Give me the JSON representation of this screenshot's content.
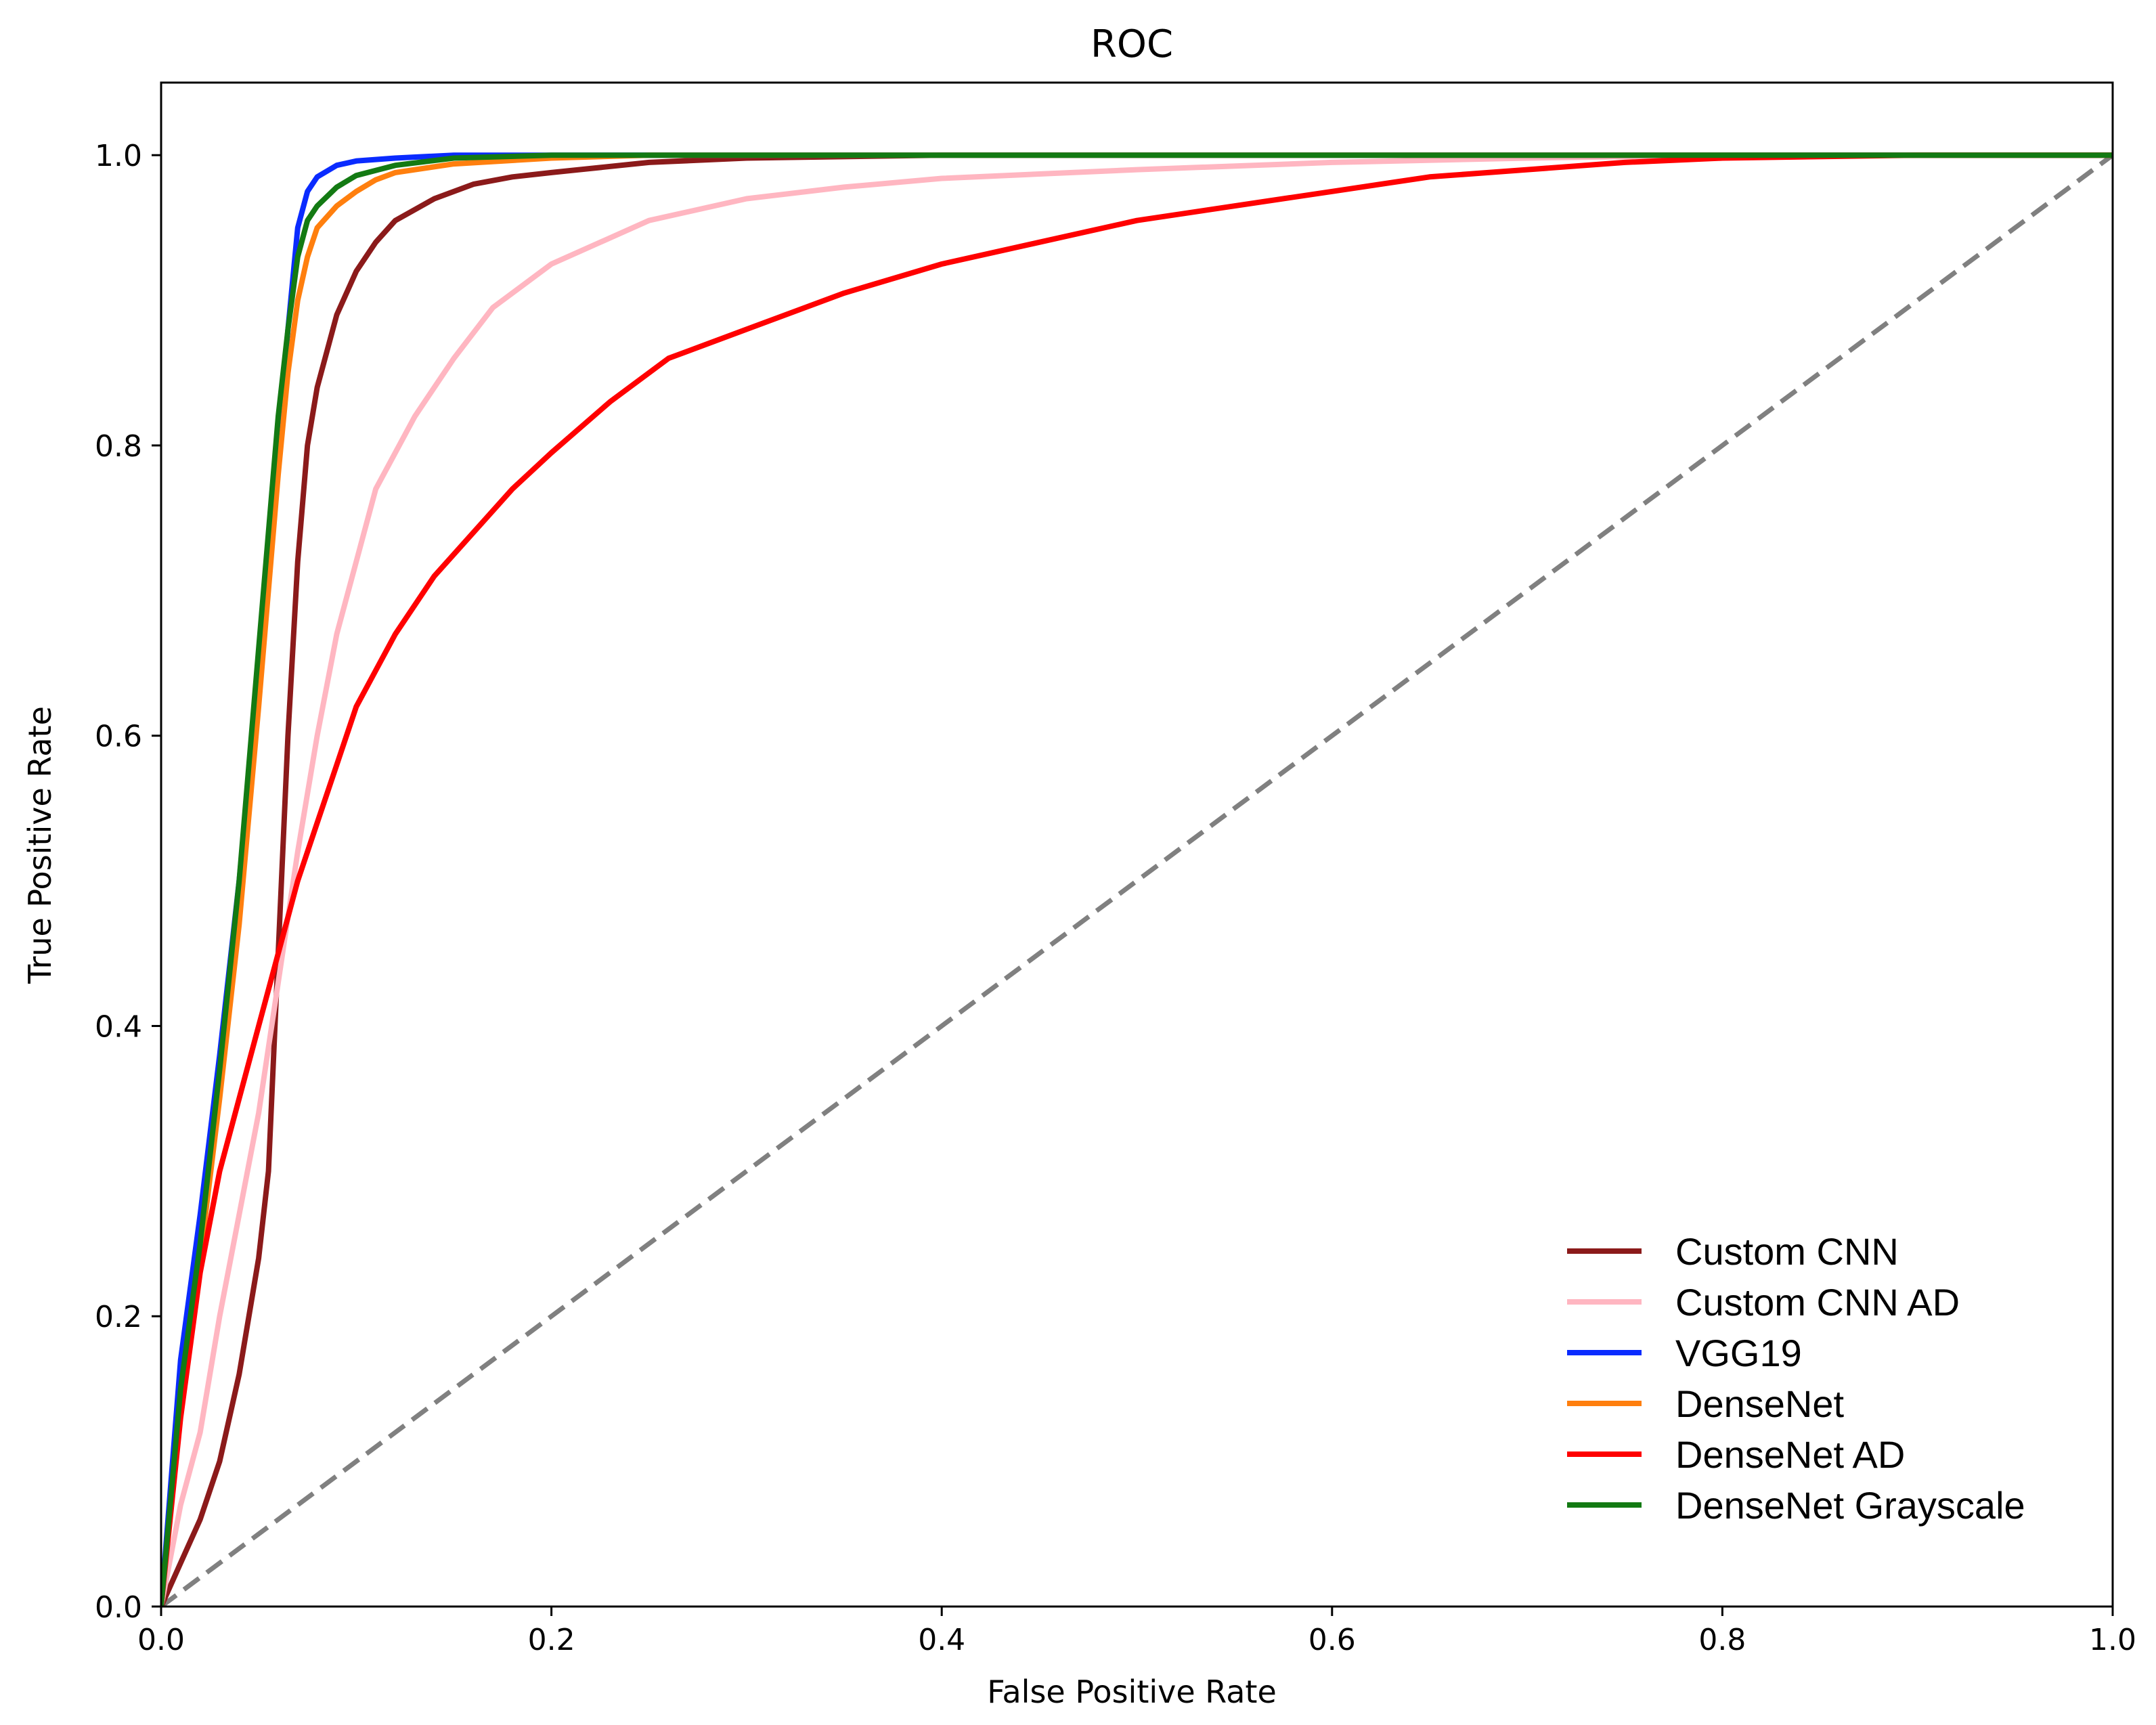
{
  "chart_data": {
    "type": "line",
    "title": "ROC",
    "xlabel": "False Positive Rate",
    "ylabel": "True Positive Rate",
    "xlim": [
      0.0,
      1.0
    ],
    "ylim": [
      0.0,
      1.05
    ],
    "xticks": [
      "0.0",
      "0.2",
      "0.4",
      "0.6",
      "0.8",
      "1.0"
    ],
    "yticks": [
      "0.0",
      "0.2",
      "0.4",
      "0.6",
      "0.8",
      "1.0"
    ],
    "grid": false,
    "legend_position": "lower-right",
    "series": [
      {
        "name": "Custom CNN",
        "color": "#8b1a1a",
        "x": [
          0,
          0.01,
          0.02,
          0.03,
          0.04,
          0.05,
          0.055,
          0.06,
          0.065,
          0.07,
          0.075,
          0.08,
          0.09,
          0.1,
          0.11,
          0.12,
          0.14,
          0.16,
          0.18,
          0.2,
          0.25,
          0.3,
          0.4,
          0.6,
          0.8,
          1.0
        ],
        "y": [
          0,
          0.03,
          0.06,
          0.1,
          0.16,
          0.24,
          0.3,
          0.45,
          0.6,
          0.72,
          0.8,
          0.84,
          0.89,
          0.92,
          0.94,
          0.955,
          0.97,
          0.98,
          0.985,
          0.988,
          0.995,
          0.998,
          1.0,
          1.0,
          1.0,
          1.0
        ]
      },
      {
        "name": "Custom CNN AD",
        "color": "#ffb6c1",
        "x": [
          0,
          0.01,
          0.02,
          0.03,
          0.04,
          0.05,
          0.06,
          0.07,
          0.08,
          0.09,
          0.1,
          0.11,
          0.13,
          0.15,
          0.17,
          0.2,
          0.25,
          0.3,
          0.35,
          0.4,
          0.5,
          0.6,
          0.7,
          0.8,
          1.0
        ],
        "y": [
          0,
          0.07,
          0.12,
          0.2,
          0.27,
          0.34,
          0.43,
          0.52,
          0.6,
          0.67,
          0.72,
          0.77,
          0.82,
          0.86,
          0.895,
          0.925,
          0.955,
          0.97,
          0.978,
          0.984,
          0.99,
          0.995,
          0.998,
          1.0,
          1.0
        ]
      },
      {
        "name": "VGG19",
        "color": "#0a2bff",
        "x": [
          0,
          0.01,
          0.02,
          0.03,
          0.04,
          0.05,
          0.06,
          0.065,
          0.07,
          0.075,
          0.08,
          0.09,
          0.1,
          0.12,
          0.15,
          0.2,
          0.3,
          0.5,
          1.0
        ],
        "y": [
          0,
          0.17,
          0.27,
          0.38,
          0.5,
          0.64,
          0.8,
          0.88,
          0.95,
          0.975,
          0.985,
          0.993,
          0.996,
          0.998,
          1.0,
          1.0,
          1.0,
          1.0,
          1.0
        ]
      },
      {
        "name": "DenseNet",
        "color": "#ff7f0e",
        "x": [
          0,
          0.01,
          0.02,
          0.03,
          0.04,
          0.05,
          0.06,
          0.065,
          0.07,
          0.075,
          0.08,
          0.09,
          0.1,
          0.11,
          0.12,
          0.15,
          0.2,
          0.25,
          0.3,
          0.5,
          1.0
        ],
        "y": [
          0,
          0.14,
          0.24,
          0.35,
          0.47,
          0.62,
          0.78,
          0.85,
          0.9,
          0.93,
          0.95,
          0.965,
          0.975,
          0.983,
          0.988,
          0.994,
          0.998,
          1.0,
          1.0,
          1.0,
          1.0
        ]
      },
      {
        "name": "DenseNet AD",
        "color": "#ff0000",
        "x": [
          0,
          0.01,
          0.02,
          0.03,
          0.04,
          0.05,
          0.06,
          0.07,
          0.08,
          0.09,
          0.1,
          0.12,
          0.14,
          0.16,
          0.18,
          0.2,
          0.23,
          0.26,
          0.3,
          0.35,
          0.4,
          0.45,
          0.5,
          0.55,
          0.6,
          0.65,
          0.7,
          0.75,
          0.8,
          0.9,
          1.0
        ],
        "y": [
          0,
          0.13,
          0.23,
          0.3,
          0.35,
          0.4,
          0.45,
          0.5,
          0.54,
          0.58,
          0.62,
          0.67,
          0.71,
          0.74,
          0.77,
          0.795,
          0.83,
          0.86,
          0.88,
          0.905,
          0.925,
          0.94,
          0.955,
          0.965,
          0.975,
          0.985,
          0.99,
          0.995,
          0.998,
          1.0,
          1.0
        ]
      },
      {
        "name": "DenseNet Grayscale",
        "color": "#137a13",
        "x": [
          0,
          0.01,
          0.02,
          0.03,
          0.04,
          0.05,
          0.06,
          0.065,
          0.07,
          0.075,
          0.08,
          0.09,
          0.1,
          0.12,
          0.15,
          0.2,
          0.3,
          0.5,
          1.0
        ],
        "y": [
          0,
          0.15,
          0.25,
          0.37,
          0.5,
          0.66,
          0.82,
          0.88,
          0.93,
          0.955,
          0.965,
          0.978,
          0.986,
          0.993,
          0.998,
          1.0,
          1.0,
          1.0,
          1.0
        ]
      }
    ],
    "reference_line": {
      "color": "#808080",
      "style": "dashed",
      "x": [
        0,
        1
      ],
      "y": [
        0,
        1
      ]
    }
  }
}
